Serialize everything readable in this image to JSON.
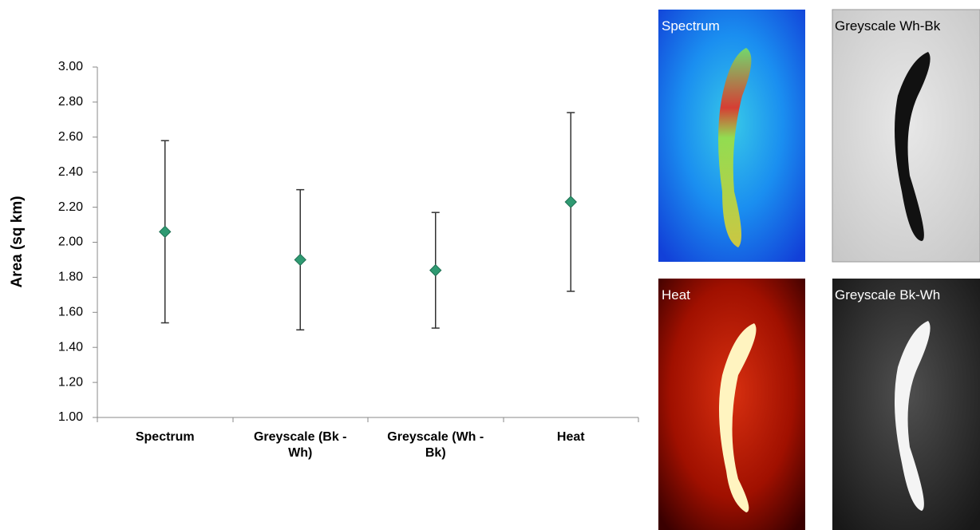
{
  "chart_data": {
    "type": "errorbar",
    "y_label": "Area (sq km)",
    "categories": [
      "Spectrum",
      "Greyscale (Bk - Wh)",
      "Greyscale (Wh - Bk)",
      "Heat"
    ],
    "values": [
      2.06,
      1.9,
      1.84,
      2.23
    ],
    "errors": [
      0.52,
      0.4,
      0.33,
      0.51
    ],
    "color": "#2f9a72",
    "ylim": [
      1,
      3
    ],
    "yticks": [
      {
        "value": 1,
        "label": "1.00"
      },
      {
        "value": 1.2,
        "label": "1.20"
      },
      {
        "value": 1.4,
        "label": "1.40"
      },
      {
        "value": 1.6,
        "label": "1.60"
      },
      {
        "value": 1.8,
        "label": "1.80"
      },
      {
        "value": 2,
        "label": "2.00"
      },
      {
        "value": 2.2,
        "label": "2.20"
      },
      {
        "value": 2.4,
        "label": "2.40"
      },
      {
        "value": 2.6,
        "label": "2.60"
      },
      {
        "value": 2.8,
        "label": "2.80"
      },
      {
        "value": 3,
        "label": "3.00"
      }
    ]
  },
  "images": [
    {
      "label": "Spectrum"
    },
    {
      "label": "Greyscale Wh-Bk"
    },
    {
      "label": "Heat"
    },
    {
      "label": "Greyscale Bk-Wh"
    }
  ]
}
